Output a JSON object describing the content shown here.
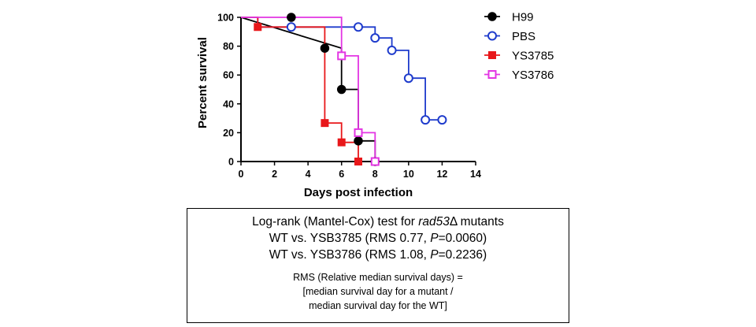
{
  "chart_data": {
    "type": "line",
    "step": true,
    "title": "",
    "xlabel": "Days post infection",
    "ylabel": "Percent survival",
    "xlim": [
      0,
      14
    ],
    "ylim": [
      0,
      100
    ],
    "xticks": [
      0,
      2,
      4,
      6,
      8,
      10,
      12,
      14
    ],
    "yticks": [
      0,
      20,
      40,
      60,
      80,
      100
    ],
    "grid": false,
    "legend_position": "right",
    "series": [
      {
        "name": "H99",
        "color": "#000000",
        "marker": "filled-circle",
        "steps": [
          [
            0,
            100
          ],
          [
            6,
            78.6
          ],
          [
            6,
            78.6
          ],
          [
            6,
            50
          ],
          [
            7,
            50
          ],
          [
            7,
            14.3
          ],
          [
            8,
            14.3
          ],
          [
            8,
            0
          ]
        ],
        "points": [
          [
            3,
            100
          ],
          [
            5,
            78.6
          ],
          [
            6,
            50
          ],
          [
            7,
            14.3
          ],
          [
            8,
            0
          ]
        ]
      },
      {
        "name": "PBS",
        "color": "#1f3ccc",
        "marker": "open-circle",
        "steps": [
          [
            0,
            100
          ],
          [
            1,
            100
          ],
          [
            1,
            93.3
          ],
          [
            8,
            93.3
          ],
          [
            8,
            85.7
          ],
          [
            9,
            85.7
          ],
          [
            9,
            77.1
          ],
          [
            10,
            77.1
          ],
          [
            10,
            57.8
          ],
          [
            11,
            57.8
          ],
          [
            11,
            28.9
          ],
          [
            12,
            28.9
          ]
        ],
        "points": [
          [
            3,
            93.3
          ],
          [
            7,
            93.3
          ],
          [
            8,
            85.7
          ],
          [
            9,
            77.1
          ],
          [
            10,
            57.8
          ],
          [
            11,
            28.9
          ],
          [
            12,
            28.9
          ]
        ]
      },
      {
        "name": "YS3785",
        "color": "#e8171a",
        "marker": "filled-square",
        "steps": [
          [
            0,
            100
          ],
          [
            1,
            100
          ],
          [
            1,
            93.3
          ],
          [
            5,
            93.3
          ],
          [
            5,
            26.7
          ],
          [
            6,
            26.7
          ],
          [
            6,
            13.3
          ],
          [
            7,
            13.3
          ],
          [
            7,
            0
          ]
        ],
        "points": [
          [
            1,
            93.3
          ],
          [
            5,
            26.7
          ],
          [
            6,
            13.3
          ],
          [
            7,
            0
          ]
        ]
      },
      {
        "name": "YS3786",
        "color": "#e335e3",
        "marker": "open-square",
        "steps": [
          [
            0,
            100
          ],
          [
            6,
            100
          ],
          [
            6,
            73.3
          ],
          [
            7,
            73.3
          ],
          [
            7,
            20
          ],
          [
            8,
            20
          ],
          [
            8,
            0
          ]
        ],
        "points": [
          [
            6,
            73.3
          ],
          [
            7,
            20
          ],
          [
            8,
            0
          ]
        ]
      }
    ]
  },
  "stats_box": {
    "title_prefix": "Log-rank (Mantel-Cox) test for ",
    "title_gene": "rad53",
    "title_suffix": "Δ mutants",
    "comparisons": [
      {
        "label": "WT vs. YSB3785 (RMS 0.77, ",
        "p_symbol": "P",
        "p_value": "=0.0060)"
      },
      {
        "label": "WT vs. YSB3786 (RMS 1.08, ",
        "p_symbol": "P",
        "p_value": "=0.2236)"
      }
    ],
    "note_lines": [
      "RMS (Relative median survival days) =",
      "[median survival day for a mutant  /",
      "median survival day for the WT]"
    ]
  }
}
